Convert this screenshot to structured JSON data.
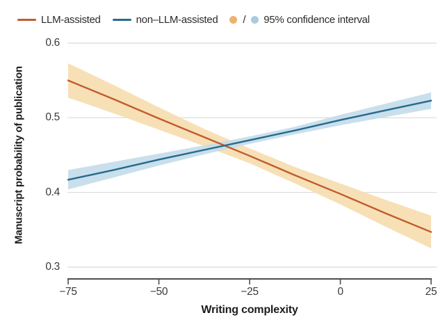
{
  "legend": {
    "items": [
      {
        "label": "LLM-assisted",
        "swatch": "line"
      },
      {
        "label": "non–LLM-assisted",
        "swatch": "line"
      },
      {
        "label": "95% confidence interval",
        "swatch": "dots"
      }
    ],
    "separator": "/",
    "ci_dot_colors": [
      "#edb26e",
      "#a9cbe0"
    ]
  },
  "chart_data": {
    "type": "line",
    "title": "",
    "xlabel": "Writing complexity",
    "ylabel": "Manuscript probability of publication",
    "xlim": [
      -75,
      25
    ],
    "ylim": [
      0.3,
      0.6
    ],
    "x_ticks": [
      -75,
      -50,
      -25,
      0,
      25
    ],
    "x_tick_labels": [
      "−75",
      "−50",
      "−25",
      "0",
      "25"
    ],
    "y_ticks": [
      0.6,
      0.5,
      0.4,
      0.3
    ],
    "y_tick_labels": [
      "0.6",
      "0.5",
      "0.4",
      "0.3"
    ],
    "grid": "horizontal-only",
    "legend_position": "top-left",
    "colors": {
      "grid": "#d9d9d9",
      "axis": "#4d4d4f",
      "tick_text": "#3a3a3a"
    },
    "series": [
      {
        "name": "LLM-assisted",
        "color": "#c25b2e",
        "band_color": "#f6ddae",
        "x": [
          -75,
          -62.5,
          -50,
          -37.5,
          -25,
          -12.5,
          0,
          12.5,
          25
        ],
        "y": [
          0.55,
          0.525,
          0.499,
          0.474,
          0.449,
          0.423,
          0.398,
          0.372,
          0.347
        ],
        "ci_upper": [
          0.573,
          0.544,
          0.514,
          0.485,
          0.459,
          0.434,
          0.412,
          0.39,
          0.369
        ],
        "ci_lower": [
          0.527,
          0.506,
          0.484,
          0.462,
          0.439,
          0.412,
          0.384,
          0.354,
          0.325
        ]
      },
      {
        "name": "non–LLM-assisted",
        "color": "#266a8c",
        "band_color": "#c3dcea",
        "x": [
          -75,
          -62.5,
          -50,
          -37.5,
          -25,
          -12.5,
          0,
          12.5,
          25
        ],
        "y": [
          0.417,
          0.43,
          0.444,
          0.457,
          0.47,
          0.483,
          0.497,
          0.51,
          0.523
        ],
        "ci_upper": [
          0.43,
          0.441,
          0.452,
          0.463,
          0.475,
          0.488,
          0.504,
          0.519,
          0.534
        ],
        "ci_lower": [
          0.404,
          0.42,
          0.436,
          0.451,
          0.465,
          0.478,
          0.49,
          0.501,
          0.512
        ]
      }
    ]
  }
}
